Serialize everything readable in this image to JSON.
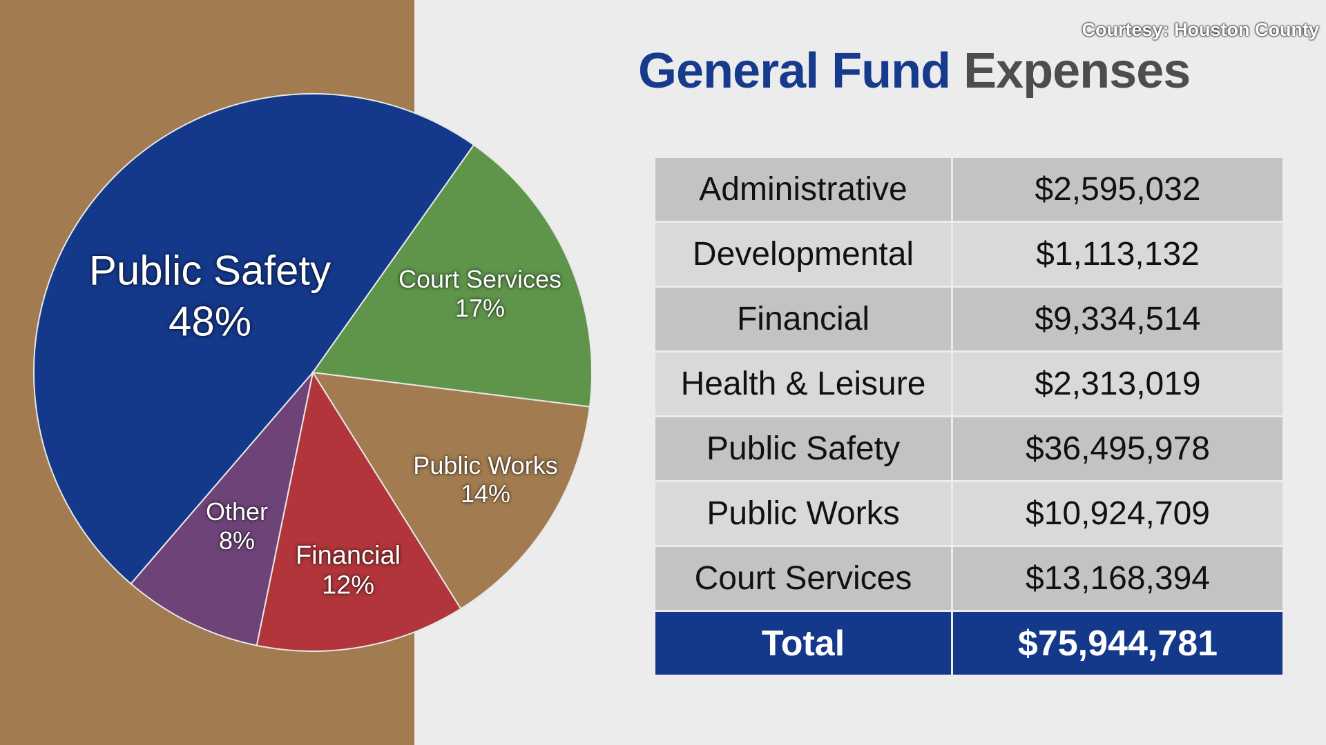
{
  "courtesy": "Courtesy: Houston County",
  "title": {
    "part1": "General Fund",
    "part2": "Expenses"
  },
  "table": {
    "rows": [
      {
        "label": "Administrative",
        "value": "$2,595,032"
      },
      {
        "label": "Developmental",
        "value": "$1,113,132"
      },
      {
        "label": "Financial",
        "value": "$9,334,514"
      },
      {
        "label": "Health & Leisure",
        "value": "$2,313,019"
      },
      {
        "label": "Public Safety",
        "value": "$36,495,978"
      },
      {
        "label": "Public Works",
        "value": "$10,924,709"
      },
      {
        "label": "Court Services",
        "value": "$13,168,394"
      }
    ],
    "total": {
      "label": "Total",
      "value": "$75,944,781"
    }
  },
  "colors": {
    "panel": "#a27c50",
    "background": "#ececec",
    "accent": "#14388a"
  },
  "chart_data": {
    "type": "pie",
    "title": "General Fund Expenses",
    "slices": [
      {
        "name": "Public Safety",
        "label": "48%",
        "value": 48,
        "color": "#14388a"
      },
      {
        "name": "Court Services",
        "label": "17%",
        "value": 17,
        "color": "#5f944b"
      },
      {
        "name": "Public Works",
        "label": "14%",
        "value": 14,
        "color": "#a27c50"
      },
      {
        "name": "Financial",
        "label": "12%",
        "value": 12,
        "color": "#b1353a"
      },
      {
        "name": "Other",
        "label": "8%",
        "value": 8,
        "color": "#6e4478"
      }
    ],
    "start_angle_deg": 220.7
  }
}
